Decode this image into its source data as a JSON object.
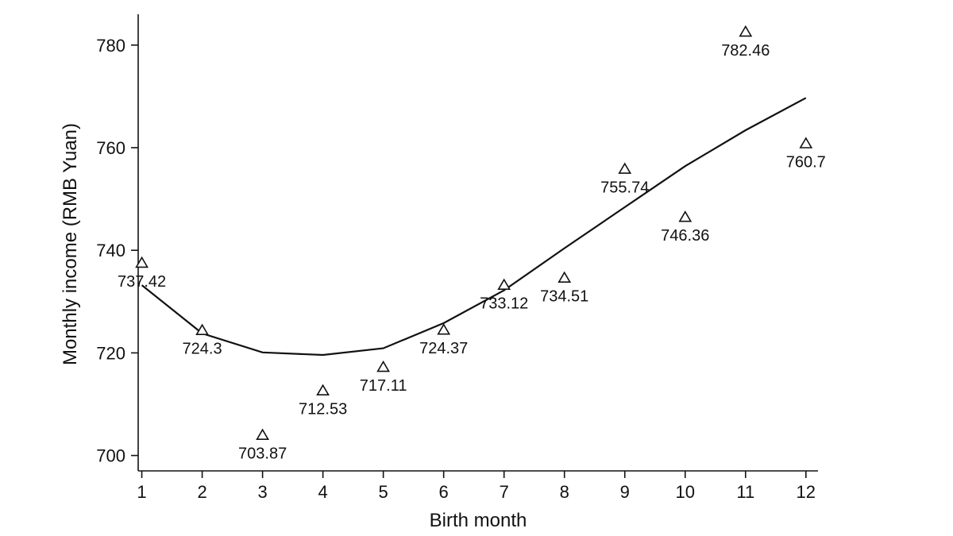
{
  "chart_data": {
    "type": "scatter",
    "title": "",
    "xlabel": "Birth month",
    "ylabel": "Monthly income (RMB Yuan)",
    "xlim": [
      0.94,
      12.2
    ],
    "ylim": [
      697,
      786
    ],
    "x_ticks": [
      1,
      2,
      3,
      4,
      5,
      6,
      7,
      8,
      9,
      10,
      11,
      12
    ],
    "y_ticks": [
      700,
      720,
      740,
      760,
      780
    ],
    "grid": false,
    "legend": "none",
    "series": [
      {
        "kind": "scatter",
        "marker": "triangle",
        "x": [
          1,
          2,
          3,
          4,
          5,
          6,
          7,
          8,
          9,
          10,
          11,
          12
        ],
        "values": [
          737.42,
          724.3,
          703.87,
          712.53,
          717.11,
          724.37,
          733.12,
          734.51,
          755.74,
          746.36,
          782.46,
          760.7
        ],
        "labels": [
          "737.42",
          "724.3",
          "703.87",
          "712.53",
          "717.11",
          "724.37",
          "733.12",
          "734.51",
          "755.74",
          "746.36",
          "782.46",
          "760.7"
        ]
      },
      {
        "kind": "line",
        "x": [
          1,
          2,
          3,
          4,
          5,
          6,
          7,
          8,
          9,
          10,
          11,
          12
        ],
        "values": [
          733.2,
          723.8,
          720.1,
          719.6,
          720.9,
          725.8,
          732.2,
          740.4,
          748.4,
          756.4,
          763.4,
          769.7
        ]
      }
    ],
    "colors": {
      "ink": "#111111",
      "background": "#ffffff"
    }
  }
}
